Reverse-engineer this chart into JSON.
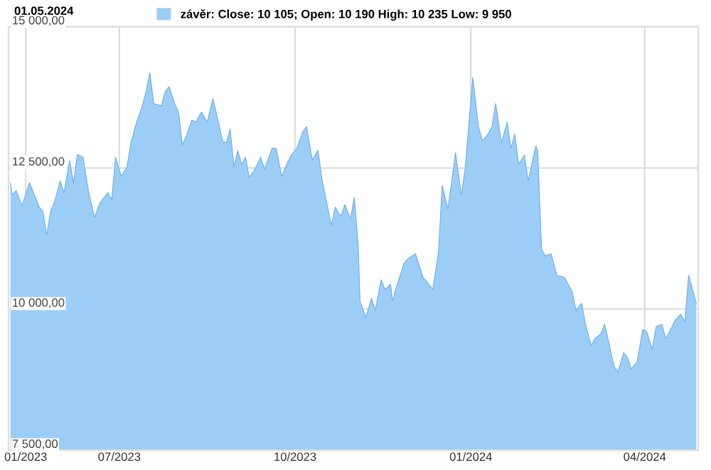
{
  "chart_data": {
    "type": "area",
    "annotations": [
      "01.05.2024"
    ],
    "x": [
      "2023-05-05",
      "2023-05-06",
      "2023-05-08",
      "2023-05-11",
      "2023-05-15",
      "2023-05-20",
      "2023-05-22",
      "2023-05-24",
      "2023-05-26",
      "2023-05-28",
      "2023-05-31",
      "2023-06-02",
      "2023-06-05",
      "2023-06-07",
      "2023-06-09",
      "2023-06-12",
      "2023-06-15",
      "2023-06-18",
      "2023-06-21",
      "2023-06-25",
      "2023-06-27",
      "2023-06-29",
      "2023-07-02",
      "2023-07-05",
      "2023-07-07",
      "2023-07-10",
      "2023-07-13",
      "2023-07-15",
      "2023-07-17",
      "2023-07-19",
      "2023-07-23",
      "2023-07-25",
      "2023-07-27",
      "2023-07-30",
      "2023-08-01",
      "2023-08-03",
      "2023-08-05",
      "2023-08-08",
      "2023-08-10",
      "2023-08-13",
      "2023-08-16",
      "2023-08-19",
      "2023-08-21",
      "2023-08-24",
      "2023-08-26",
      "2023-08-28",
      "2023-08-30",
      "2023-09-01",
      "2023-09-03",
      "2023-09-05",
      "2023-09-07",
      "2023-09-10",
      "2023-09-13",
      "2023-09-15",
      "2023-09-19",
      "2023-09-21",
      "2023-09-24",
      "2023-09-26",
      "2023-09-29",
      "2023-10-02",
      "2023-10-05",
      "2023-10-07",
      "2023-10-10",
      "2023-10-13",
      "2023-10-15",
      "2023-10-17",
      "2023-10-20",
      "2023-10-22",
      "2023-10-25",
      "2023-10-27",
      "2023-10-30",
      "2023-11-01",
      "2023-11-03",
      "2023-11-04",
      "2023-11-07",
      "2023-11-10",
      "2023-11-12",
      "2023-11-15",
      "2023-11-17",
      "2023-11-20",
      "2023-11-21",
      "2023-11-23",
      "2023-11-27",
      "2023-11-29",
      "2023-12-03",
      "2023-12-07",
      "2023-12-09",
      "2023-12-12",
      "2023-12-15",
      "2023-12-17",
      "2023-12-20",
      "2023-12-24",
      "2023-12-27",
      "2023-12-29",
      "2024-01-02",
      "2024-01-05",
      "2024-01-07",
      "2024-01-10",
      "2024-01-12",
      "2024-01-14",
      "2024-01-17",
      "2024-01-20",
      "2024-01-22",
      "2024-01-24",
      "2024-01-26",
      "2024-01-29",
      "2024-01-31",
      "2024-02-04",
      "2024-02-05",
      "2024-02-07",
      "2024-02-09",
      "2024-02-12",
      "2024-02-15",
      "2024-02-19",
      "2024-02-23",
      "2024-02-25",
      "2024-02-28",
      "2024-03-01",
      "2024-03-04",
      "2024-03-06",
      "2024-03-09",
      "2024-03-11",
      "2024-03-13",
      "2024-03-16",
      "2024-03-18",
      "2024-03-21",
      "2024-03-23",
      "2024-03-25",
      "2024-03-28",
      "2024-03-31",
      "2024-04-02",
      "2024-04-05",
      "2024-04-07",
      "2024-04-10",
      "2024-04-12",
      "2024-04-14",
      "2024-04-17",
      "2024-04-20",
      "2024-04-22",
      "2024-04-24",
      "2024-04-28"
    ],
    "series": [
      {
        "name": "závěr: Close: 10 105; Open: 10 190 High: 10 235 Low: 9 950",
        "color": "#9ccdf7",
        "values": [
          12230,
          12020,
          12100,
          11830,
          12240,
          11810,
          11730,
          11310,
          11730,
          11890,
          12270,
          12060,
          12630,
          12230,
          12740,
          12690,
          12060,
          11620,
          11890,
          12060,
          11940,
          12690,
          12350,
          12520,
          12940,
          13310,
          13600,
          13850,
          14190,
          13640,
          13600,
          13850,
          13940,
          13640,
          13480,
          12910,
          13060,
          13350,
          13310,
          13490,
          13310,
          13730,
          13440,
          12980,
          12940,
          13190,
          12520,
          12810,
          12560,
          12690,
          12330,
          12480,
          12690,
          12480,
          12850,
          12850,
          12350,
          12520,
          12730,
          12850,
          13140,
          13230,
          12640,
          12810,
          12310,
          11980,
          11480,
          11810,
          11640,
          11850,
          11600,
          11980,
          11140,
          10140,
          9850,
          10190,
          9980,
          10520,
          10350,
          10440,
          10140,
          10390,
          10810,
          10890,
          10980,
          10560,
          10480,
          10350,
          10980,
          12190,
          11770,
          12770,
          12020,
          12480,
          14100,
          13230,
          12980,
          13100,
          13230,
          13640,
          12940,
          13310,
          12850,
          13100,
          12560,
          12730,
          12270,
          12890,
          12810,
          11060,
          10940,
          10980,
          10600,
          10560,
          10310,
          9980,
          10100,
          9730,
          9350,
          9480,
          9560,
          9730,
          9440,
          8980,
          8890,
          9230,
          9140,
          8940,
          9060,
          9640,
          9600,
          9290,
          9690,
          9730,
          9480,
          9600,
          9810,
          9910,
          9770,
          10600,
          10100
        ]
      }
    ],
    "xlim": [
      "2023-05-04",
      "2024-04-29"
    ],
    "xticks": [
      {
        "value": "2023-05-13",
        "label": "01/2023"
      },
      {
        "value": "2023-07-01",
        "label": "07/2023"
      },
      {
        "value": "2023-10-01",
        "label": "10/2023"
      },
      {
        "value": "2024-01-01",
        "label": "01/2024"
      },
      {
        "value": "2024-04-01",
        "label": "04/2024"
      }
    ],
    "ylim": [
      7500,
      15000
    ],
    "yticks": [
      {
        "value": 7500,
        "label": "7 500,00"
      },
      {
        "value": 10000,
        "label": "10 000,00"
      },
      {
        "value": 12500,
        "label": "12 500,00"
      },
      {
        "value": 15000,
        "label": "15 000,00"
      }
    ],
    "grid": true,
    "legend": "top"
  }
}
